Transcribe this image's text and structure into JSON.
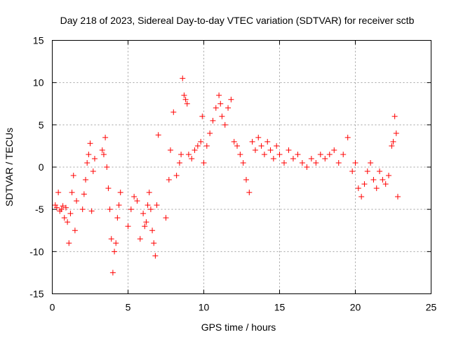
{
  "chart_data": {
    "type": "scatter",
    "title": "Day 218 of 2023, Sidereal Day-to-day VTEC variation (SDTVAR) for receiver sctb",
    "xlabel": "GPS time / hours",
    "ylabel": "SDTVAR / TECUs",
    "xlim": [
      0,
      25
    ],
    "ylim": [
      -15,
      15
    ],
    "xticks": [
      0,
      5,
      10,
      15,
      20,
      25
    ],
    "yticks": [
      -15,
      -10,
      -5,
      0,
      5,
      10,
      15
    ],
    "xtick_labels": [
      "0",
      "5",
      "10",
      "15",
      "20",
      "25"
    ],
    "ytick_labels": [
      "-15",
      "-10",
      "-5",
      "0",
      "5",
      "10",
      "15"
    ],
    "grid": true,
    "marker": "+",
    "color": "#ff0000",
    "series": [
      {
        "name": "SDTVAR",
        "x": [
          0.2,
          0.3,
          0.4,
          0.5,
          0.6,
          0.7,
          0.8,
          0.9,
          1.0,
          1.1,
          1.2,
          1.3,
          1.4,
          1.5,
          1.6,
          2.0,
          2.1,
          2.2,
          2.3,
          2.4,
          2.5,
          2.6,
          2.7,
          2.8,
          3.3,
          3.4,
          3.5,
          3.6,
          3.7,
          3.8,
          3.9,
          4.0,
          4.1,
          4.2,
          4.3,
          4.4,
          4.5,
          5.0,
          5.2,
          5.4,
          5.6,
          5.8,
          6.0,
          6.1,
          6.2,
          6.3,
          6.4,
          6.5,
          6.6,
          6.7,
          6.8,
          6.9,
          7.0,
          7.5,
          7.7,
          7.8,
          8.0,
          8.2,
          8.4,
          8.5,
          8.6,
          8.7,
          8.8,
          8.9,
          9.0,
          9.2,
          9.4,
          9.6,
          9.8,
          9.9,
          10.0,
          10.2,
          10.4,
          10.6,
          10.8,
          11.0,
          11.1,
          11.2,
          11.4,
          11.6,
          11.8,
          12.0,
          12.2,
          12.4,
          12.6,
          12.8,
          13.0,
          13.2,
          13.4,
          13.6,
          13.8,
          14.0,
          14.2,
          14.4,
          14.6,
          14.8,
          15.0,
          15.3,
          15.6,
          15.9,
          16.2,
          16.5,
          16.8,
          17.1,
          17.4,
          17.7,
          18.0,
          18.3,
          18.6,
          18.9,
          19.2,
          19.5,
          19.8,
          20.0,
          20.2,
          20.4,
          20.6,
          20.8,
          21.0,
          21.2,
          21.4,
          21.6,
          21.8,
          22.0,
          22.2,
          22.4,
          22.5,
          22.6,
          22.7,
          22.8
        ],
        "y": [
          -4.5,
          -4.8,
          -3.0,
          -5.2,
          -5.0,
          -4.6,
          -6.0,
          -4.8,
          -6.5,
          -9.0,
          -5.5,
          -3.0,
          -1.0,
          -7.5,
          -4.0,
          -5.0,
          -3.2,
          -1.5,
          0.5,
          1.5,
          2.8,
          -5.2,
          -0.5,
          1.0,
          2.0,
          1.5,
          3.5,
          0.0,
          -2.5,
          -5.0,
          -8.5,
          -12.5,
          -10.0,
          -9.0,
          -6.0,
          -4.5,
          -3.0,
          -7.0,
          -5.0,
          -3.5,
          -4.0,
          -8.5,
          -5.5,
          -7.0,
          -6.5,
          -4.5,
          -3.0,
          -5.0,
          -7.5,
          -9.0,
          -10.5,
          -4.5,
          3.8,
          -6.0,
          -1.5,
          2.0,
          6.5,
          -1.0,
          0.5,
          1.5,
          10.5,
          8.5,
          8.0,
          7.5,
          1.5,
          1.0,
          2.0,
          2.5,
          3.0,
          6.0,
          0.5,
          2.5,
          4.0,
          5.5,
          7.0,
          8.5,
          7.5,
          6.0,
          5.0,
          7.0,
          8.0,
          3.0,
          2.5,
          1.5,
          0.5,
          -1.5,
          -3.0,
          3.0,
          2.0,
          3.5,
          2.5,
          1.5,
          3.0,
          2.0,
          1.0,
          2.5,
          1.5,
          0.5,
          2.0,
          1.0,
          1.5,
          0.5,
          0.0,
          1.0,
          0.5,
          1.5,
          1.0,
          1.5,
          2.0,
          0.5,
          1.5,
          3.5,
          -0.5,
          0.5,
          -2.5,
          -3.5,
          -2.0,
          -0.5,
          0.5,
          -1.5,
          -2.5,
          -0.5,
          -1.5,
          -2.0,
          -1.0,
          2.5,
          3.0,
          6.0,
          4.0,
          -3.5
        ]
      }
    ]
  }
}
